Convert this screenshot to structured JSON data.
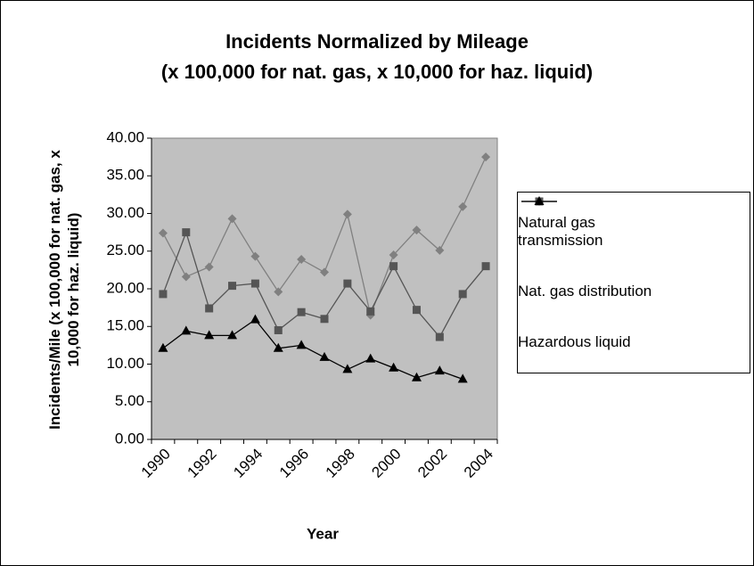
{
  "chart_data": {
    "type": "line",
    "title": "Incidents Normalized by Mileage",
    "subtitle": "(x 100,000 for nat. gas, x 10,000 for haz. liquid)",
    "x_label": "Year",
    "y_label": "Incidents/Mile (x 100,000 for nat. gas, x 10,000 for haz. liquid)",
    "categories": [
      "1990",
      null,
      "1992",
      null,
      "1994",
      null,
      "1996",
      null,
      "1998",
      null,
      "2000",
      null,
      "2002",
      null,
      "2004"
    ],
    "series": [
      {
        "name": "Natural gas transmission",
        "color": "#808080",
        "marker": "diamond",
        "values": [
          27.4,
          21.6,
          22.9,
          29.3,
          24.3,
          19.6,
          23.9,
          22.2,
          29.9,
          16.5,
          24.5,
          27.8,
          25.1,
          30.9,
          37.5
        ]
      },
      {
        "name": "Nat. gas distribution",
        "color": "#555555",
        "marker": "square",
        "values": [
          19.3,
          27.5,
          17.4,
          20.4,
          20.7,
          14.5,
          16.9,
          16.0,
          20.7,
          17.0,
          23.0,
          17.2,
          13.6,
          19.3,
          23.0
        ]
      },
      {
        "name": "Hazardous liquid",
        "color": "#000000",
        "marker": "triangle",
        "values": [
          12.1,
          14.4,
          13.8,
          13.8,
          15.9,
          12.1,
          12.5,
          10.9,
          9.3,
          10.7,
          9.5,
          8.2,
          9.1,
          8.0,
          null
        ]
      }
    ],
    "ylim": [
      0,
      40
    ],
    "yticks": [
      {
        "value": 0,
        "label": "0.00"
      },
      {
        "value": 5,
        "label": "5.00"
      },
      {
        "value": 10,
        "label": "10.00"
      },
      {
        "value": 15,
        "label": "15.00"
      },
      {
        "value": 20,
        "label": "20.00"
      },
      {
        "value": 25,
        "label": "25.00"
      },
      {
        "value": 30,
        "label": "30.00"
      },
      {
        "value": 35,
        "label": "35.00"
      },
      {
        "value": 40,
        "label": "40.00"
      }
    ],
    "grid": false,
    "legend": "right",
    "plot_background": "#c0c0c0"
  }
}
